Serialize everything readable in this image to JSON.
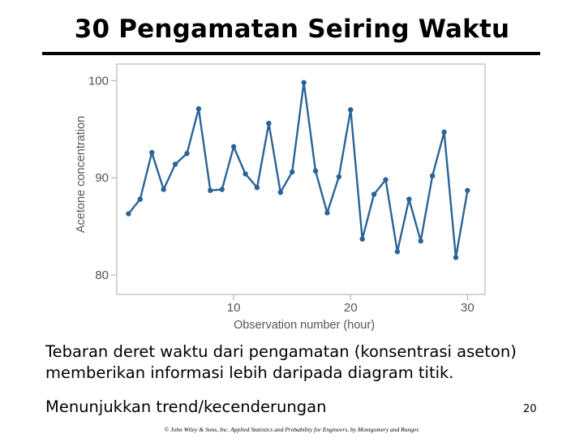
{
  "slide": {
    "title": "30 Pengamatan Seiring Waktu",
    "paragraph1": "Tebaran deret waktu dari pengamatan (konsentrasi aseton) memberikan informasi lebih daripada diagram titik.",
    "paragraph2": "Menunjukkan trend/kecenderungan",
    "page_number": "20",
    "copyright": "© John Wiley & Sons, Inc. Applied Statistics and Probability for Engineers, by Montgomery and Runger."
  },
  "colors": {
    "series": "#2a6496",
    "axis_frame": "#b8b8b8",
    "tick_text": "#555555"
  },
  "chart_data": {
    "type": "line",
    "xlabel": "Observation number (hour)",
    "ylabel": "Acetone concentration",
    "xlim": [
      0,
      31.5
    ],
    "ylim": [
      78,
      101.7
    ],
    "xticks": [
      10,
      20,
      30
    ],
    "yticks": [
      80,
      90,
      100
    ],
    "grid": false,
    "series": [
      {
        "x": [
          1,
          2,
          3,
          4,
          5,
          6,
          7,
          8,
          9,
          10,
          11,
          12,
          13,
          14,
          15,
          16,
          17,
          18,
          19,
          20,
          21,
          22,
          23,
          24,
          25,
          26,
          27,
          28,
          29,
          30
        ],
        "values": [
          86.3,
          87.8,
          92.6,
          88.8,
          91.4,
          92.5,
          97.1,
          88.7,
          88.8,
          93.2,
          90.4,
          89.0,
          95.6,
          88.5,
          90.6,
          99.8,
          90.7,
          86.4,
          90.1,
          97.0,
          83.7,
          88.3,
          89.8,
          82.4,
          87.8,
          83.5,
          90.2,
          94.7,
          81.8,
          88.7
        ]
      }
    ]
  }
}
